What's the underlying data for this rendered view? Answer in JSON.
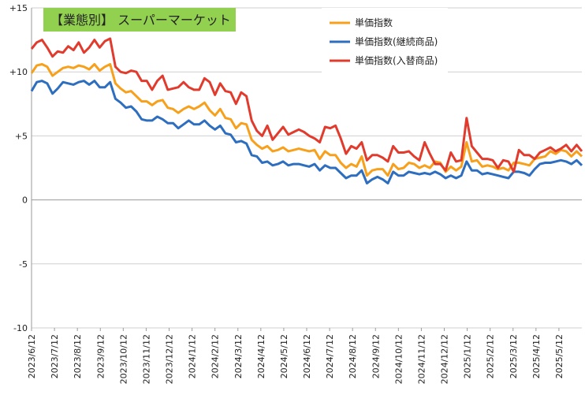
{
  "chart_data": {
    "type": "line",
    "title": "【業態別】 スーパーマーケット",
    "colors": {
      "title_bg": "#92d050",
      "title_text": "#ffffff"
    },
    "ylim": [
      -10,
      15
    ],
    "yticks": [
      "+15",
      "+10",
      "+5",
      "0",
      "-5",
      "-10"
    ],
    "ytick_values": [
      15,
      10,
      5,
      0,
      -5,
      -10
    ],
    "grid": "horizontal",
    "legend_position": "top-right",
    "x_tick_labels": [
      "2023/6/12",
      "2023/7/12",
      "2023/8/12",
      "2023/9/12",
      "2023/10/12",
      "2023/11/12",
      "2023/12/12",
      "2024/1/12",
      "2024/2/12",
      "2024/3/12",
      "2024/4/12",
      "2024/5/12",
      "2024/6/12",
      "2024/7/12",
      "2024/8/12",
      "2024/9/12",
      "2024/10/12",
      "2024/11/12",
      "2024/12/12",
      "2025/1/12",
      "2025/2/12",
      "2025/3/12",
      "2025/4/12",
      "2025/5/12"
    ],
    "series": [
      {
        "name": "単価指数",
        "color": "#f7a01c",
        "values": [
          9.9,
          10.5,
          10.6,
          10.4,
          9.7,
          10,
          10.3,
          10.4,
          10.3,
          10.5,
          10.4,
          10.2,
          10.6,
          10.1,
          10.4,
          10.6,
          9.1,
          8.7,
          8.4,
          8.5,
          8.1,
          7.7,
          7.7,
          7.4,
          7.7,
          7.8,
          7.2,
          7.1,
          6.8,
          7.1,
          7.3,
          7.1,
          7.3,
          7.6,
          7,
          6.6,
          7.1,
          6.4,
          6.3,
          5.6,
          6,
          5.9,
          4.7,
          4.3,
          4,
          4.2,
          3.8,
          3.9,
          4.1,
          3.8,
          3.9,
          4,
          3.9,
          3.8,
          3.9,
          3.2,
          3.8,
          3.5,
          3.5,
          2.9,
          2.5,
          2.8,
          2.6,
          3.4,
          1.9,
          2.3,
          2.4,
          2.4,
          1.9,
          2.8,
          2.4,
          2.5,
          2.9,
          2.8,
          2.5,
          2.7,
          2.5,
          3,
          2.9,
          2.2,
          2.6,
          2.3,
          2.6,
          4.5,
          3,
          3.1,
          2.6,
          2.7,
          2.6,
          2.4,
          2.5,
          2.3,
          2.9,
          2.9,
          2.8,
          2.7,
          3.2,
          3.3,
          3.4,
          3.8,
          3.6,
          3.9,
          3.8,
          3.4,
          3.8,
          3.4
        ]
      },
      {
        "name": "単価指数(継続商品)",
        "color": "#2e6ebf",
        "values": [
          8.5,
          9.2,
          9.3,
          9.1,
          8.3,
          8.7,
          9.2,
          9.1,
          9,
          9.2,
          9.3,
          9,
          9.3,
          8.8,
          8.8,
          9.2,
          7.9,
          7.6,
          7.2,
          7.3,
          6.9,
          6.3,
          6.2,
          6.2,
          6.5,
          6.3,
          6,
          6,
          5.6,
          5.9,
          6.2,
          5.9,
          5.9,
          6.2,
          5.8,
          5.5,
          5.8,
          5.2,
          5.1,
          4.5,
          4.6,
          4.4,
          3.5,
          3.4,
          2.9,
          3,
          2.7,
          2.8,
          3,
          2.7,
          2.8,
          2.8,
          2.7,
          2.6,
          2.8,
          2.3,
          2.7,
          2.5,
          2.5,
          2.1,
          1.7,
          1.9,
          1.9,
          2.3,
          1.3,
          1.6,
          1.8,
          1.6,
          1.3,
          2.2,
          1.9,
          1.9,
          2.2,
          2.1,
          2,
          2.1,
          2,
          2.2,
          2,
          1.7,
          1.9,
          1.7,
          1.9,
          3,
          2.3,
          2.3,
          2,
          2.1,
          2,
          1.9,
          1.8,
          1.7,
          2.2,
          2.2,
          2.1,
          1.9,
          2.4,
          2.8,
          2.9,
          2.9,
          3,
          3.1,
          3,
          2.8,
          3.1,
          2.7
        ]
      },
      {
        "name": "単価指数(入替商品)",
        "color": "#e13b2e",
        "values": [
          11.8,
          12.3,
          12.5,
          11.9,
          11.2,
          11.6,
          11.5,
          12,
          11.7,
          12.3,
          11.5,
          11.9,
          12.5,
          11.9,
          12.4,
          12.6,
          10.4,
          10,
          9.9,
          10.1,
          10,
          9.3,
          9.3,
          8.6,
          9.3,
          9.7,
          8.6,
          8.7,
          8.8,
          9.2,
          8.8,
          8.6,
          8.6,
          9.5,
          9.2,
          8.2,
          9.1,
          8.5,
          8.4,
          7.5,
          8.4,
          8.1,
          6.2,
          5.4,
          5,
          5.8,
          4.7,
          5.2,
          5.7,
          5.1,
          5.3,
          5.5,
          5.3,
          5,
          4.8,
          4.5,
          5.7,
          5.6,
          5.8,
          4.8,
          3.6,
          4.2,
          4,
          4.5,
          3.1,
          3.5,
          3.5,
          3.3,
          3,
          4.2,
          3.7,
          3.7,
          3.8,
          3.4,
          3.1,
          4.5,
          3.6,
          2.8,
          2.8,
          2.3,
          3.7,
          3,
          3.1,
          6.4,
          4.2,
          3.7,
          3.2,
          3.2,
          3.1,
          2.5,
          3.1,
          3,
          2.2,
          3.9,
          3.5,
          3.5,
          3.2,
          3.7,
          3.9,
          4.1,
          3.8,
          4,
          4.3,
          3.8,
          4.3,
          3.8
        ]
      }
    ]
  }
}
